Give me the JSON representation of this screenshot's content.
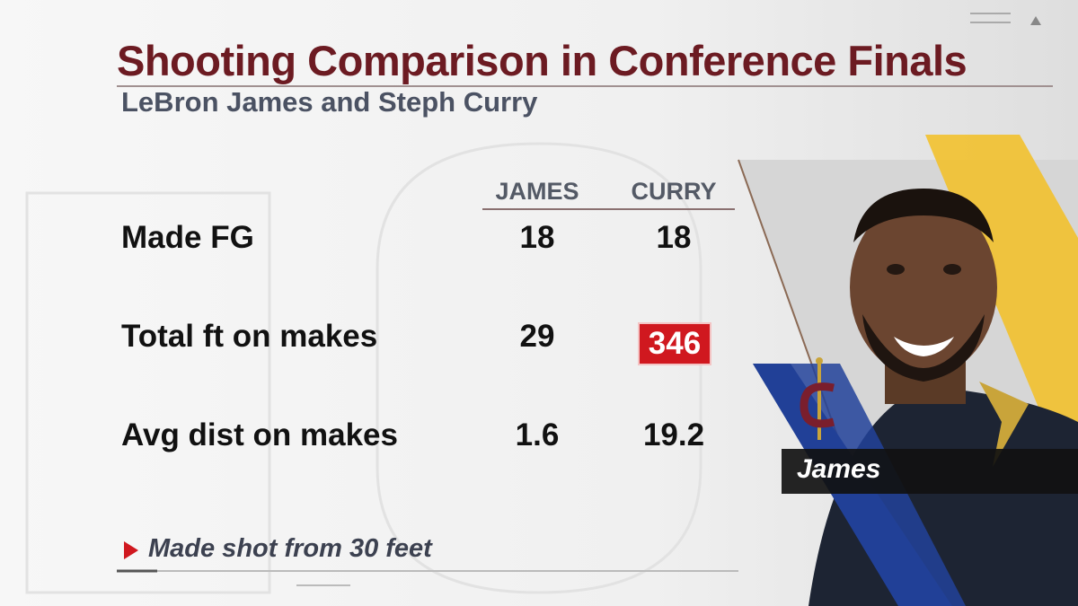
{
  "header": {
    "title": "Shooting Comparison in Conference Finals",
    "subtitle": "LeBron James and Steph Curry"
  },
  "table": {
    "columns": [
      "JAMES",
      "CURRY"
    ],
    "rows": [
      [
        "Made FG",
        "18",
        "18"
      ],
      [
        "Total ft on makes",
        "29",
        "346"
      ],
      [
        "Avg dist on makes",
        "1.6",
        "19.2"
      ]
    ]
  },
  "footnote": "Made shot from 30 feet",
  "player": {
    "caption": "James"
  }
}
